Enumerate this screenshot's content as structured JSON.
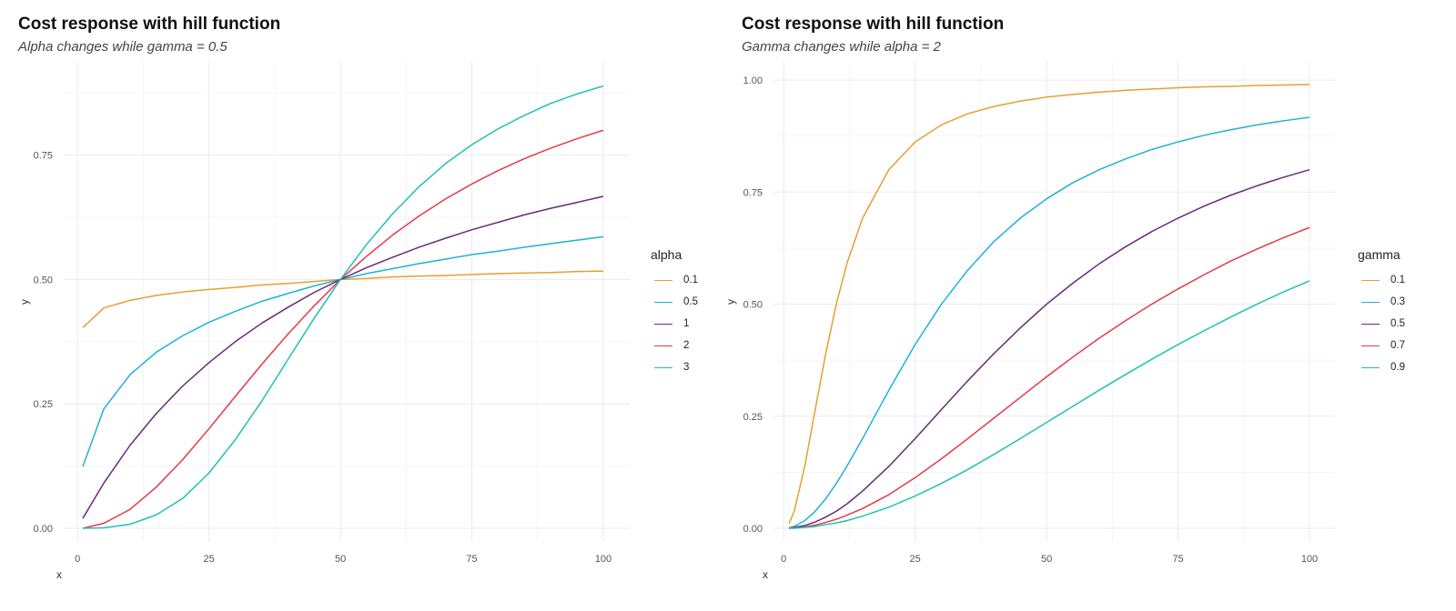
{
  "chart_data": [
    {
      "type": "line",
      "title": "Cost response with hill function",
      "subtitle": "Alpha changes while gamma = 0.5",
      "xlabel": "x",
      "ylabel": "y",
      "xlim": [
        1,
        100
      ],
      "ylim": [
        0,
        0.89
      ],
      "x_ticks": [
        0,
        25,
        50,
        75,
        100
      ],
      "y_ticks": [
        0,
        0.25,
        0.5,
        0.75
      ],
      "x_tick_labels": [
        "0",
        "25",
        "50",
        "75",
        "100"
      ],
      "y_tick_labels": [
        "0.00",
        "0.25",
        "0.50",
        "0.75"
      ],
      "grid": true,
      "legend_position": "right",
      "legend_title": "alpha",
      "x": [
        1,
        5,
        10,
        15,
        20,
        25,
        30,
        35,
        40,
        45,
        50,
        55,
        60,
        65,
        70,
        75,
        80,
        85,
        90,
        95,
        100
      ],
      "series": [
        {
          "name": "0.1",
          "color": "#E69F33",
          "values": [
            0.403,
            0.443,
            0.458,
            0.468,
            0.475,
            0.48,
            0.484,
            0.489,
            0.492,
            0.496,
            0.5,
            0.502,
            0.505,
            0.507,
            0.508,
            0.51,
            0.512,
            0.513,
            0.514,
            0.516,
            0.517
          ]
        },
        {
          "name": "0.5",
          "color": "#1EB1D9",
          "values": [
            0.124,
            0.24,
            0.309,
            0.354,
            0.387,
            0.414,
            0.436,
            0.456,
            0.472,
            0.487,
            0.5,
            0.512,
            0.522,
            0.532,
            0.541,
            0.55,
            0.557,
            0.565,
            0.572,
            0.579,
            0.586
          ]
        },
        {
          "name": "1",
          "color": "#6A2A7A",
          "values": [
            0.02,
            0.091,
            0.167,
            0.231,
            0.286,
            0.333,
            0.375,
            0.412,
            0.444,
            0.474,
            0.5,
            0.524,
            0.545,
            0.565,
            0.583,
            0.6,
            0.615,
            0.63,
            0.643,
            0.655,
            0.667
          ]
        },
        {
          "name": "2",
          "color": "#E63946",
          "values": [
            0.0,
            0.01,
            0.038,
            0.083,
            0.138,
            0.2,
            0.265,
            0.329,
            0.39,
            0.447,
            0.5,
            0.547,
            0.59,
            0.628,
            0.662,
            0.692,
            0.719,
            0.743,
            0.764,
            0.783,
            0.8
          ]
        },
        {
          "name": "3",
          "color": "#1FC1B3",
          "values": [
            0.0,
            0.001,
            0.008,
            0.027,
            0.06,
            0.111,
            0.178,
            0.255,
            0.339,
            0.422,
            0.5,
            0.571,
            0.633,
            0.687,
            0.733,
            0.771,
            0.803,
            0.83,
            0.854,
            0.873,
            0.889
          ]
        }
      ]
    },
    {
      "type": "line",
      "title": "Cost response with hill function",
      "subtitle": "Gamma changes while alpha = 2",
      "xlabel": "x",
      "ylabel": "y",
      "xlim": [
        1,
        100
      ],
      "ylim": [
        0,
        0.99
      ],
      "x_ticks": [
        0,
        25,
        50,
        75,
        100
      ],
      "y_ticks": [
        0,
        0.25,
        0.5,
        0.75,
        1.0
      ],
      "x_tick_labels": [
        "0",
        "25",
        "50",
        "75",
        "100"
      ],
      "y_tick_labels": [
        "0.00",
        "0.25",
        "0.50",
        "0.75",
        "1.00"
      ],
      "grid": true,
      "legend_position": "right",
      "legend_title": "gamma",
      "x": [
        1,
        2,
        4,
        6,
        8,
        10,
        12,
        15,
        20,
        25,
        30,
        35,
        40,
        45,
        50,
        55,
        60,
        65,
        70,
        75,
        80,
        85,
        90,
        95,
        100
      ],
      "series": [
        {
          "name": "0.1",
          "color": "#E69F33",
          "values": [
            0.01,
            0.038,
            0.138,
            0.265,
            0.39,
            0.5,
            0.59,
            0.692,
            0.8,
            0.862,
            0.9,
            0.925,
            0.941,
            0.953,
            0.962,
            0.968,
            0.973,
            0.977,
            0.98,
            0.983,
            0.985,
            0.986,
            0.988,
            0.989,
            0.99
          ]
        },
        {
          "name": "0.3",
          "color": "#1EB1D9",
          "values": [
            0.001,
            0.004,
            0.017,
            0.038,
            0.066,
            0.1,
            0.138,
            0.2,
            0.308,
            0.41,
            0.5,
            0.576,
            0.64,
            0.692,
            0.735,
            0.771,
            0.8,
            0.824,
            0.845,
            0.862,
            0.877,
            0.889,
            0.9,
            0.909,
            0.917
          ]
        },
        {
          "name": "0.5",
          "color": "#6A2A7A",
          "values": [
            0.0,
            0.002,
            0.006,
            0.014,
            0.025,
            0.038,
            0.054,
            0.083,
            0.138,
            0.2,
            0.265,
            0.329,
            0.39,
            0.447,
            0.5,
            0.547,
            0.59,
            0.628,
            0.662,
            0.692,
            0.719,
            0.743,
            0.764,
            0.783,
            0.8
          ]
        },
        {
          "name": "0.7",
          "color": "#E63946",
          "values": [
            0.0,
            0.001,
            0.003,
            0.007,
            0.013,
            0.02,
            0.029,
            0.044,
            0.075,
            0.113,
            0.155,
            0.2,
            0.246,
            0.292,
            0.338,
            0.382,
            0.424,
            0.463,
            0.5,
            0.534,
            0.566,
            0.596,
            0.623,
            0.648,
            0.671
          ]
        },
        {
          "name": "0.9",
          "color": "#1FC1B3",
          "values": [
            0.0,
            0.0,
            0.002,
            0.004,
            0.008,
            0.012,
            0.017,
            0.027,
            0.047,
            0.072,
            0.1,
            0.131,
            0.165,
            0.2,
            0.236,
            0.272,
            0.308,
            0.343,
            0.377,
            0.41,
            0.441,
            0.471,
            0.5,
            0.527,
            0.552
          ]
        }
      ]
    }
  ]
}
